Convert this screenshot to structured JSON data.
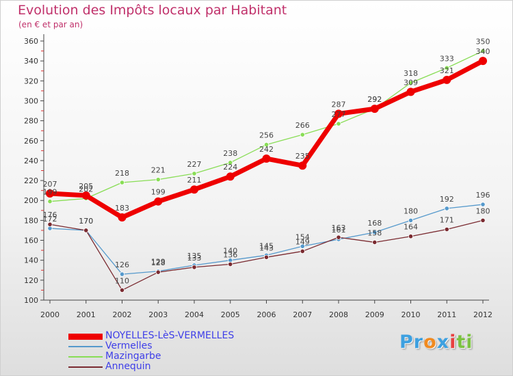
{
  "chart_data": {
    "type": "line",
    "title": "Evolution des Impôts locaux par Habitant",
    "subtitle": "(en € et par an)",
    "xlabel": "",
    "ylabel": "",
    "x": [
      "2000",
      "2001",
      "2002",
      "2003",
      "2004",
      "2005",
      "2006",
      "2007",
      "2008",
      "2009",
      "2010",
      "2011",
      "2012"
    ],
    "ylim": [
      100,
      360
    ],
    "yticks": [
      100,
      120,
      140,
      160,
      180,
      200,
      220,
      240,
      260,
      280,
      300,
      320,
      340,
      360
    ],
    "grid": false,
    "legend_position": "bottom-left",
    "series": [
      {
        "name": "NOYELLES-LèS-VERMELLES",
        "color": "#ee0000",
        "values": [
          207,
          205,
          183,
          199,
          211,
          224,
          242,
          235,
          287,
          292,
          309,
          321,
          340
        ]
      },
      {
        "name": "Vermelles",
        "color": "#5599cc",
        "values": [
          172,
          170,
          126,
          129,
          135,
          140,
          145,
          154,
          161,
          168,
          180,
          192,
          196
        ]
      },
      {
        "name": "Mazingarbe",
        "color": "#88dd55",
        "values": [
          199,
          202,
          218,
          221,
          227,
          238,
          256,
          266,
          277,
          292,
          318,
          333,
          350
        ]
      },
      {
        "name": "Annequin",
        "color": "#7a2a30",
        "values": [
          176,
          170,
          110,
          128,
          133,
          136,
          143,
          149,
          163,
          158,
          164,
          171,
          180
        ]
      }
    ]
  },
  "logo": {
    "parts": [
      "Pr",
      "o",
      "x",
      "i",
      "ti"
    ],
    "colors": [
      "#3da0e0",
      "#f08a20",
      "#3da0e0",
      "#e84040",
      "#7cc242"
    ]
  }
}
